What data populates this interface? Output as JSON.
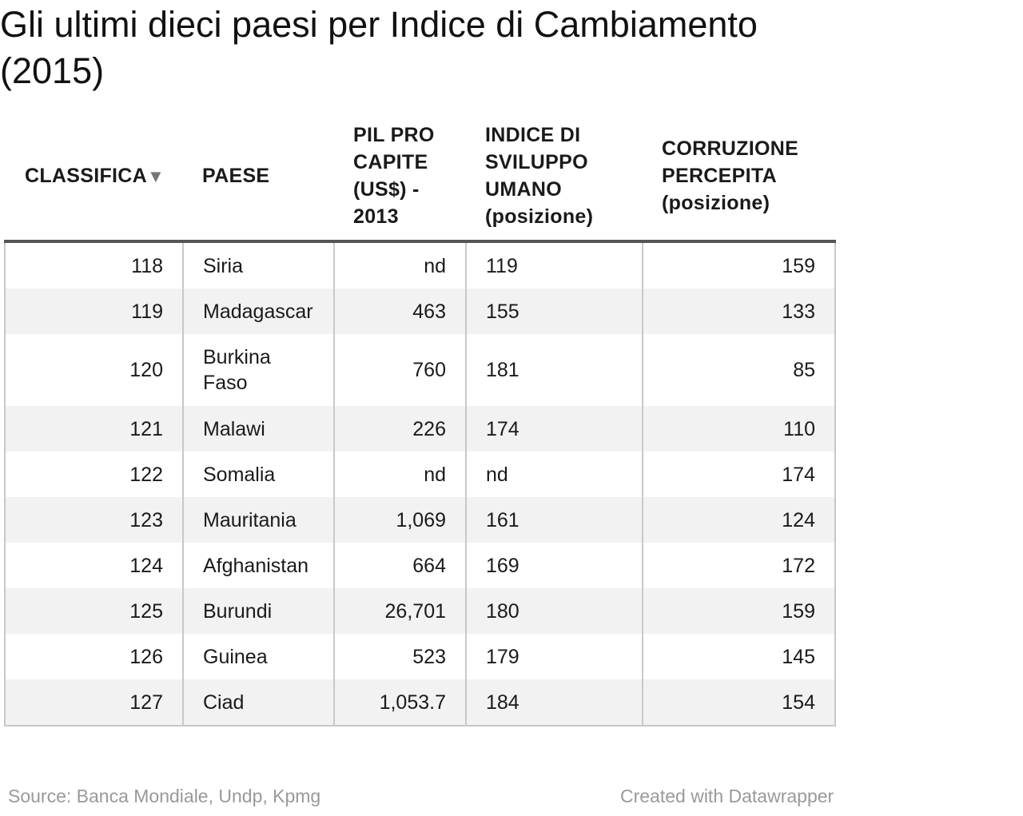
{
  "title": "Gli ultimi dieci paesi per Indice di Cambiamento (2015)",
  "chart_data": {
    "type": "table",
    "columns": [
      "CLASSIFICA",
      "PAESE",
      "PIL PRO CAPITE (US$) - 2013",
      "INDICE DI SVILUPPO UMANO (posizione)",
      "CORRUZIONE PERCEPITA (posizione)"
    ],
    "sort_icon": "sort-down-icon",
    "rows": [
      [
        "118",
        "Siria",
        "nd",
        "119",
        "159"
      ],
      [
        "119",
        "Madagascar",
        "463",
        "155",
        "133"
      ],
      [
        "120",
        "Burkina Faso",
        "760",
        "181",
        "85"
      ],
      [
        "121",
        "Malawi",
        "226",
        "174",
        "110"
      ],
      [
        "122",
        "Somalia",
        "nd",
        "nd",
        "174"
      ],
      [
        "123",
        "Mauritania",
        "1,069",
        "161",
        "124"
      ],
      [
        "124",
        "Afghanistan",
        "664",
        "169",
        "172"
      ],
      [
        "125",
        "Burundi",
        "26,701",
        "180",
        "159"
      ],
      [
        "126",
        "Guinea",
        "523",
        "179",
        "145"
      ],
      [
        "127",
        "Ciad",
        "1,053.7",
        "184",
        "154"
      ]
    ]
  },
  "footer": {
    "source": "Source: Banca Mondiale, Undp, Kpmg",
    "credit": "Created with Datawrapper"
  },
  "colors": {
    "stripe": "#f2f2f2",
    "header_rule": "#555555",
    "footer_text": "#999999"
  }
}
